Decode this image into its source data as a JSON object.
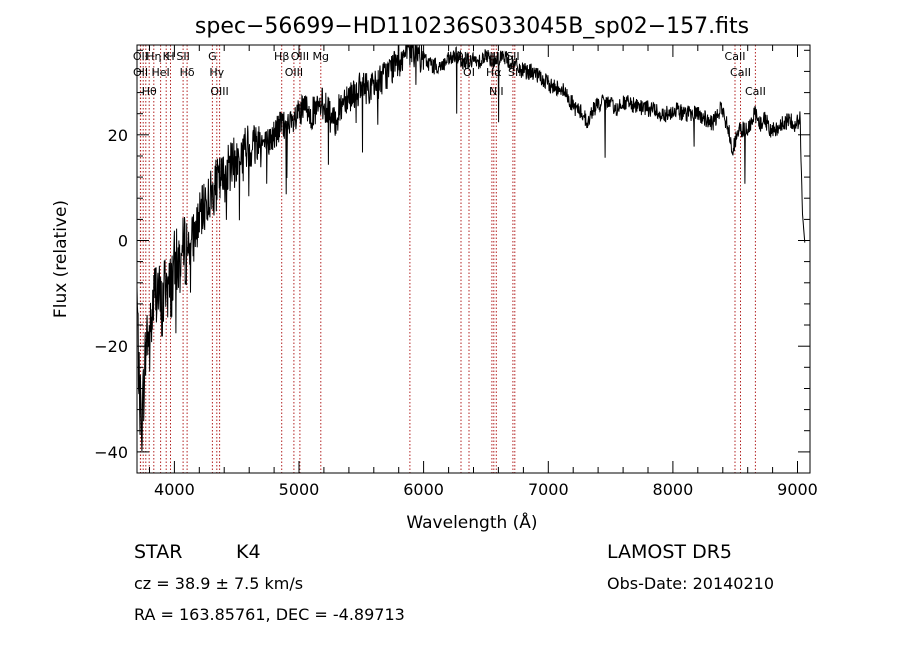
{
  "chart_data": {
    "type": "line",
    "title": "spec−56699−HD110236S033045B_sp02−157.fits",
    "xlabel": "Wavelength (Å)",
    "ylabel": "Flux (relative)",
    "xlim": [
      3700,
      9100
    ],
    "ylim": [
      -44,
      37
    ],
    "x_ticks": [
      4000,
      5000,
      6000,
      7000,
      8000,
      9000
    ],
    "y_ticks": [
      -40,
      -20,
      0,
      20
    ],
    "series": [
      {
        "x": [
          3700,
          3720,
          3740,
          3760,
          3780,
          3800,
          3830,
          3860,
          3900,
          3930,
          3960,
          4000,
          4040,
          4080,
          4120,
          4160,
          4200,
          4250,
          4300,
          4350,
          4400,
          4450,
          4500,
          4560,
          4620,
          4680,
          4740,
          4800,
          4860,
          4920,
          4980,
          5050,
          5120,
          5200,
          5280,
          5360,
          5440,
          5520,
          5600,
          5680,
          5760,
          5840,
          5900,
          5960,
          6020,
          6080,
          6140,
          6200,
          6260,
          6320,
          6380,
          6440,
          6500,
          6560,
          6620,
          6680,
          6740,
          6800,
          6860,
          6920,
          6980,
          7040,
          7100,
          7160,
          7220,
          7280,
          7320,
          7360,
          7420,
          7480,
          7540,
          7600,
          7660,
          7720,
          7780,
          7840,
          7900,
          7960,
          8020,
          8080,
          8140,
          8200,
          8260,
          8320,
          8380,
          8440,
          8480,
          8500,
          8540,
          8580,
          8620,
          8660,
          8700,
          8740,
          8780,
          8820,
          8860,
          8900,
          8940,
          8980,
          9020,
          9040,
          9060
        ],
        "y": [
          -10,
          -30,
          -34,
          -25,
          -17,
          -20,
          -12,
          -8,
          -14,
          -7,
          -10,
          -5,
          -4,
          -2,
          -1,
          1,
          4,
          7,
          9,
          11,
          12,
          14,
          15,
          17,
          18,
          19,
          18,
          20,
          22,
          21,
          23,
          25,
          24,
          26,
          22,
          27,
          28,
          29,
          29,
          31,
          33,
          35,
          36,
          35,
          34,
          33,
          33,
          34,
          35,
          34,
          34,
          34,
          35,
          34,
          35,
          34,
          33,
          32,
          32,
          31,
          30,
          29,
          29,
          27,
          25,
          24,
          22,
          25,
          26,
          26,
          25,
          26,
          26,
          25,
          25,
          25,
          24,
          24,
          25,
          24,
          24,
          24,
          23,
          22,
          25,
          22,
          17,
          19,
          21,
          21,
          22,
          24,
          22,
          23,
          21,
          21,
          22,
          22,
          23,
          22,
          23,
          5,
          -1
        ]
      }
    ],
    "spectral_lines": [
      {
        "label": "Hθ",
        "x": 3798
      },
      {
        "label": "OII",
        "x": 3727
      },
      {
        "label": "OII",
        "x": 3729
      },
      {
        "label": "K",
        "x": 3934
      },
      {
        "label": "HeI",
        "x": 3889
      },
      {
        "label": "Hη",
        "x": 3835
      },
      {
        "label": "H",
        "x": 3969
      },
      {
        "label": "Hδ",
        "x": 4102
      },
      {
        "label": "SII",
        "x": 4070
      },
      {
        "label": "OIII",
        "x": 4363
      },
      {
        "label": "Hγ",
        "x": 4340
      },
      {
        "label": "G",
        "x": 4305
      },
      {
        "label": "OIII",
        "x": 4959
      },
      {
        "label": "OIII",
        "x": 5007
      },
      {
        "label": "Hβ",
        "x": 4861
      },
      {
        "label": "Mg",
        "x": 5175
      },
      {
        "label": "OI",
        "x": 6300
      },
      {
        "label": "OI",
        "x": 6364
      },
      {
        "label": "Hα",
        "x": 6563
      },
      {
        "label": "SII",
        "x": 6716
      },
      {
        "label": "NII",
        "x": 6548
      },
      {
        "label": "NII",
        "x": 6583
      },
      {
        "label": "SII",
        "x": 6731
      },
      {
        "label": "CaII",
        "x": 8542
      },
      {
        "label": "CaII",
        "x": 8498
      },
      {
        "label": "CaII",
        "x": 8662
      }
    ],
    "extra_line_positions": [
      5890,
      3750,
      3771
    ]
  },
  "info": {
    "object_class": "STAR",
    "subclass": "K4",
    "survey": "LAMOST DR5",
    "redshift": "cz = 38.9 ± 7.5 km/s",
    "obs_date": "Obs-Date: 20140210",
    "coords": "RA = 163.85761, DEC =  -4.89713"
  },
  "colors": {
    "spectrum": "#000000",
    "line_markers": "#b22222",
    "text": "#000000"
  }
}
